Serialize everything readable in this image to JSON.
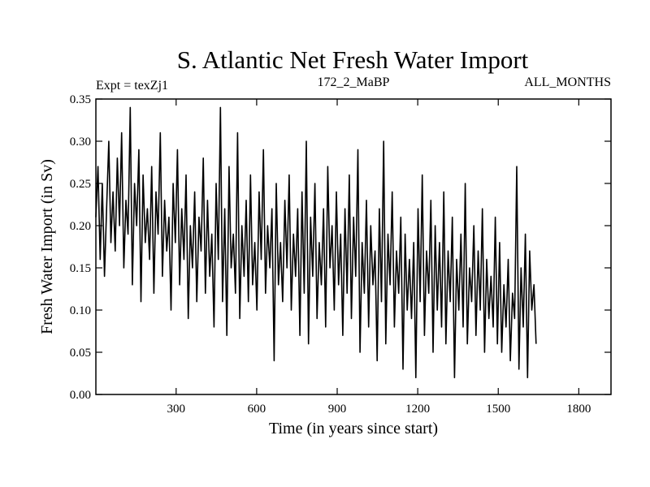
{
  "chart_data": {
    "type": "line",
    "title": "S. Atlantic Net Fresh Water Import",
    "subtitle_left": "Expt = texZj1",
    "subtitle_center": "172_2_MaBP",
    "subtitle_right": "ALL_MONTHS",
    "xlabel": "Time (in years since start)",
    "ylabel": "Fresh Water Import (in Sv)",
    "xlim": [
      1,
      1920
    ],
    "ylim": [
      0,
      0.35
    ],
    "x_ticks": [
      300,
      600,
      900,
      1200,
      1500,
      1800
    ],
    "y_ticks": [
      "0.00",
      "0.05",
      "0.10",
      "0.15",
      "0.20",
      "0.25",
      "0.30",
      "0.35"
    ],
    "series": [
      {
        "name": "S. Atlantic Net Fresh Water Import",
        "sampling": "one point every 8 years, approximate",
        "x_start": 1,
        "x_step": 8,
        "values": [
          0.21,
          0.27,
          0.16,
          0.25,
          0.14,
          0.22,
          0.3,
          0.18,
          0.24,
          0.17,
          0.28,
          0.2,
          0.31,
          0.15,
          0.23,
          0.19,
          0.34,
          0.13,
          0.25,
          0.2,
          0.29,
          0.11,
          0.26,
          0.18,
          0.22,
          0.16,
          0.27,
          0.12,
          0.24,
          0.19,
          0.31,
          0.14,
          0.23,
          0.17,
          0.21,
          0.1,
          0.25,
          0.18,
          0.29,
          0.13,
          0.22,
          0.16,
          0.26,
          0.09,
          0.2,
          0.15,
          0.24,
          0.11,
          0.21,
          0.17,
          0.28,
          0.12,
          0.23,
          0.14,
          0.19,
          0.08,
          0.25,
          0.16,
          0.34,
          0.11,
          0.22,
          0.07,
          0.27,
          0.15,
          0.19,
          0.12,
          0.31,
          0.09,
          0.2,
          0.14,
          0.23,
          0.11,
          0.26,
          0.13,
          0.18,
          0.1,
          0.24,
          0.16,
          0.29,
          0.12,
          0.2,
          0.15,
          0.22,
          0.04,
          0.25,
          0.13,
          0.18,
          0.11,
          0.23,
          0.15,
          0.26,
          0.1,
          0.19,
          0.14,
          0.22,
          0.07,
          0.24,
          0.12,
          0.3,
          0.06,
          0.21,
          0.14,
          0.25,
          0.09,
          0.18,
          0.13,
          0.22,
          0.08,
          0.27,
          0.15,
          0.2,
          0.1,
          0.24,
          0.13,
          0.19,
          0.07,
          0.22,
          0.12,
          0.26,
          0.09,
          0.21,
          0.14,
          0.29,
          0.05,
          0.18,
          0.12,
          0.23,
          0.08,
          0.2,
          0.13,
          0.17,
          0.04,
          0.22,
          0.11,
          0.3,
          0.06,
          0.19,
          0.13,
          0.24,
          0.08,
          0.17,
          0.12,
          0.21,
          0.03,
          0.19,
          0.1,
          0.16,
          0.09,
          0.18,
          0.02,
          0.22,
          0.11,
          0.26,
          0.07,
          0.17,
          0.12,
          0.23,
          0.05,
          0.2,
          0.1,
          0.18,
          0.08,
          0.24,
          0.06,
          0.17,
          0.11,
          0.21,
          0.02,
          0.16,
          0.1,
          0.19,
          0.08,
          0.25,
          0.06,
          0.15,
          0.11,
          0.2,
          0.07,
          0.17,
          0.1,
          0.22,
          0.05,
          0.16,
          0.09,
          0.14,
          0.08,
          0.21,
          0.06,
          0.18,
          0.05,
          0.13,
          0.08,
          0.16,
          0.04,
          0.12,
          0.09,
          0.27,
          0.03,
          0.15,
          0.08,
          0.19,
          0.02,
          0.17,
          0.1,
          0.13,
          0.06
        ]
      }
    ]
  }
}
